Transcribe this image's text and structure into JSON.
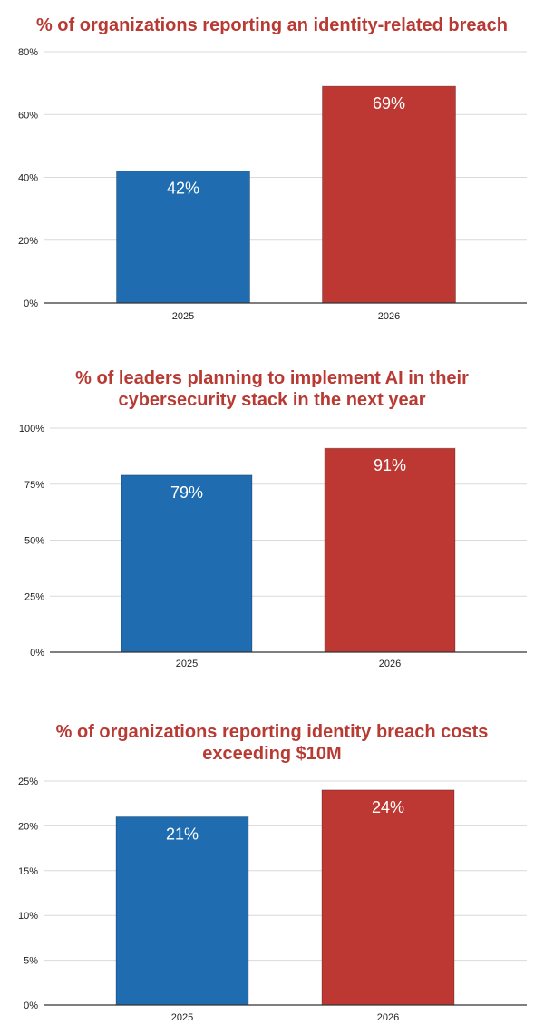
{
  "colors": {
    "title": "#b83a33",
    "bar_2025": "#1f6cb0",
    "bar_2026": "#bd3833",
    "grid": "#d9d9d9",
    "axis": "#333333",
    "label_text": "#ffffff"
  },
  "chart_data": [
    {
      "type": "bar",
      "title": "% of organizations reporting an identity-related breach",
      "categories": [
        "2025",
        "2026"
      ],
      "values": [
        42,
        69
      ],
      "value_labels": [
        "42%",
        "69%"
      ],
      "ylim": [
        0,
        80
      ],
      "yticks": [
        0,
        20,
        40,
        60,
        80
      ],
      "ytick_labels": [
        "0%",
        "20%",
        "40%",
        "60%",
        "80%"
      ],
      "grid": true,
      "legend": "none"
    },
    {
      "type": "bar",
      "title": "% of leaders planning to implement AI in their cybersecurity stack in the next year",
      "categories": [
        "2025",
        "2026"
      ],
      "values": [
        79,
        91
      ],
      "value_labels": [
        "79%",
        "91%"
      ],
      "ylim": [
        0,
        100
      ],
      "yticks": [
        0,
        25,
        50,
        75,
        100
      ],
      "ytick_labels": [
        "0%",
        "25%",
        "50%",
        "75%",
        "100%"
      ],
      "grid": true,
      "legend": "none"
    },
    {
      "type": "bar",
      "title": "% of organizations reporting identity breach costs exceeding $10M",
      "categories": [
        "2025",
        "2026"
      ],
      "values": [
        21,
        24
      ],
      "value_labels": [
        "21%",
        "24%"
      ],
      "ylim": [
        0,
        25
      ],
      "yticks": [
        0,
        5,
        10,
        15,
        20,
        25
      ],
      "ytick_labels": [
        "0%",
        "5%",
        "10%",
        "15%",
        "20%",
        "25%"
      ],
      "grid": true,
      "legend": "none"
    }
  ]
}
